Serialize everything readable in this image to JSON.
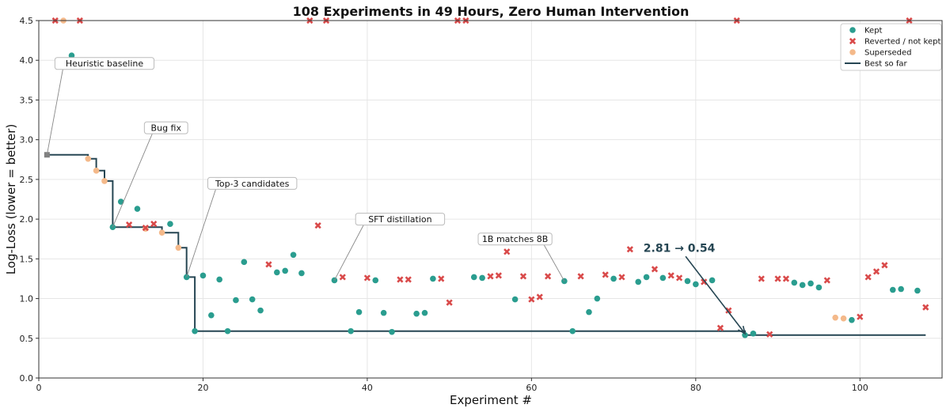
{
  "chart_data": {
    "type": "scatter",
    "title": "108 Experiments in 49 Hours, Zero Human Intervention",
    "xlabel": "Experiment #",
    "ylabel": "Log-Loss (lower = better)",
    "xlim": [
      0,
      110
    ],
    "ylim": [
      0.0,
      4.5
    ],
    "xticks": [
      "0",
      "20",
      "40",
      "60",
      "80",
      "100"
    ],
    "xtick_values": [
      0,
      20,
      40,
      60,
      80,
      100
    ],
    "yticks": [
      "0.0",
      "0.5",
      "1.0",
      "1.5",
      "2.0",
      "2.5",
      "3.0",
      "3.5",
      "4.0",
      "4.5"
    ],
    "ytick_values": [
      0.0,
      0.5,
      1.0,
      1.5,
      2.0,
      2.5,
      3.0,
      3.5,
      4.0,
      4.5
    ],
    "grid": true,
    "legend_position": "top-right",
    "colors": {
      "kept": "#2a9d8f",
      "reverted": "#d94a4a",
      "superseded": "#f4b98a",
      "best": "#264653",
      "baseline": "#808080",
      "grid": "#e6e6e6"
    },
    "legend": {
      "kept": "Kept",
      "reverted": "Reverted / not kept",
      "superseded": "Superseded",
      "best": "Best so far"
    },
    "baseline": {
      "x": 1,
      "y": 2.81
    },
    "kept": [
      {
        "x": 4,
        "y": 4.06
      },
      {
        "x": 9,
        "y": 1.9
      },
      {
        "x": 10,
        "y": 2.22
      },
      {
        "x": 12,
        "y": 2.13
      },
      {
        "x": 16,
        "y": 1.94
      },
      {
        "x": 18,
        "y": 1.27
      },
      {
        "x": 19,
        "y": 0.59
      },
      {
        "x": 20,
        "y": 1.29
      },
      {
        "x": 21,
        "y": 0.79
      },
      {
        "x": 22,
        "y": 1.24
      },
      {
        "x": 23,
        "y": 0.59
      },
      {
        "x": 24,
        "y": 0.98
      },
      {
        "x": 25,
        "y": 1.46
      },
      {
        "x": 26,
        "y": 0.99
      },
      {
        "x": 27,
        "y": 0.85
      },
      {
        "x": 29,
        "y": 1.33
      },
      {
        "x": 30,
        "y": 1.35
      },
      {
        "x": 31,
        "y": 1.55
      },
      {
        "x": 32,
        "y": 1.32
      },
      {
        "x": 36,
        "y": 1.23
      },
      {
        "x": 38,
        "y": 0.59
      },
      {
        "x": 39,
        "y": 0.83
      },
      {
        "x": 41,
        "y": 1.23
      },
      {
        "x": 42,
        "y": 0.82
      },
      {
        "x": 43,
        "y": 0.58
      },
      {
        "x": 46,
        "y": 0.81
      },
      {
        "x": 47,
        "y": 0.82
      },
      {
        "x": 48,
        "y": 1.25
      },
      {
        "x": 53,
        "y": 1.27
      },
      {
        "x": 54,
        "y": 1.26
      },
      {
        "x": 58,
        "y": 0.99
      },
      {
        "x": 64,
        "y": 1.22
      },
      {
        "x": 65,
        "y": 0.59
      },
      {
        "x": 67,
        "y": 0.83
      },
      {
        "x": 68,
        "y": 1.0
      },
      {
        "x": 70,
        "y": 1.25
      },
      {
        "x": 73,
        "y": 1.21
      },
      {
        "x": 74,
        "y": 1.27
      },
      {
        "x": 76,
        "y": 1.26
      },
      {
        "x": 79,
        "y": 1.22
      },
      {
        "x": 80,
        "y": 1.18
      },
      {
        "x": 82,
        "y": 1.23
      },
      {
        "x": 86,
        "y": 0.54
      },
      {
        "x": 87,
        "y": 0.56
      },
      {
        "x": 92,
        "y": 1.2
      },
      {
        "x": 93,
        "y": 1.17
      },
      {
        "x": 94,
        "y": 1.19
      },
      {
        "x": 95,
        "y": 1.14
      },
      {
        "x": 99,
        "y": 0.73
      },
      {
        "x": 104,
        "y": 1.11
      },
      {
        "x": 105,
        "y": 1.12
      },
      {
        "x": 107,
        "y": 1.1
      }
    ],
    "reverted": [
      {
        "x": 2,
        "y": 4.5
      },
      {
        "x": 5,
        "y": 4.5
      },
      {
        "x": 11,
        "y": 1.93
      },
      {
        "x": 13,
        "y": 1.89
      },
      {
        "x": 14,
        "y": 1.94
      },
      {
        "x": 28,
        "y": 1.43
      },
      {
        "x": 33,
        "y": 4.5
      },
      {
        "x": 34,
        "y": 1.92
      },
      {
        "x": 35,
        "y": 4.5
      },
      {
        "x": 37,
        "y": 1.27
      },
      {
        "x": 40,
        "y": 1.26
      },
      {
        "x": 44,
        "y": 1.24
      },
      {
        "x": 45,
        "y": 1.24
      },
      {
        "x": 49,
        "y": 1.25
      },
      {
        "x": 50,
        "y": 0.95
      },
      {
        "x": 51,
        "y": 4.5
      },
      {
        "x": 52,
        "y": 4.5
      },
      {
        "x": 55,
        "y": 1.28
      },
      {
        "x": 56,
        "y": 1.29
      },
      {
        "x": 57,
        "y": 1.59
      },
      {
        "x": 59,
        "y": 1.28
      },
      {
        "x": 60,
        "y": 0.99
      },
      {
        "x": 61,
        "y": 1.02
      },
      {
        "x": 62,
        "y": 1.28
      },
      {
        "x": 66,
        "y": 1.28
      },
      {
        "x": 69,
        "y": 1.3
      },
      {
        "x": 71,
        "y": 1.27
      },
      {
        "x": 72,
        "y": 1.62
      },
      {
        "x": 75,
        "y": 1.37
      },
      {
        "x": 77,
        "y": 1.29
      },
      {
        "x": 78,
        "y": 1.26
      },
      {
        "x": 81,
        "y": 1.21
      },
      {
        "x": 83,
        "y": 0.63
      },
      {
        "x": 84,
        "y": 0.85
      },
      {
        "x": 85,
        "y": 4.5
      },
      {
        "x": 88,
        "y": 1.25
      },
      {
        "x": 89,
        "y": 0.55
      },
      {
        "x": 90,
        "y": 1.25
      },
      {
        "x": 91,
        "y": 1.25
      },
      {
        "x": 96,
        "y": 1.23
      },
      {
        "x": 100,
        "y": 0.77
      },
      {
        "x": 101,
        "y": 1.27
      },
      {
        "x": 102,
        "y": 1.34
      },
      {
        "x": 103,
        "y": 1.42
      },
      {
        "x": 106,
        "y": 4.5
      },
      {
        "x": 108,
        "y": 0.89
      }
    ],
    "superseded": [
      {
        "x": 3,
        "y": 4.5
      },
      {
        "x": 6,
        "y": 2.76
      },
      {
        "x": 7,
        "y": 2.61
      },
      {
        "x": 8,
        "y": 2.48
      },
      {
        "x": 13,
        "y": 1.88
      },
      {
        "x": 15,
        "y": 1.83
      },
      {
        "x": 17,
        "y": 1.64
      },
      {
        "x": 97,
        "y": 0.76
      },
      {
        "x": 98,
        "y": 0.75
      }
    ],
    "best_so_far": [
      {
        "x": 1,
        "y": 2.81
      },
      {
        "x": 6,
        "y": 2.81
      },
      {
        "x": 6,
        "y": 2.76
      },
      {
        "x": 7,
        "y": 2.76
      },
      {
        "x": 7,
        "y": 2.61
      },
      {
        "x": 8,
        "y": 2.61
      },
      {
        "x": 8,
        "y": 2.48
      },
      {
        "x": 9,
        "y": 2.48
      },
      {
        "x": 9,
        "y": 1.9
      },
      {
        "x": 15,
        "y": 1.9
      },
      {
        "x": 15,
        "y": 1.83
      },
      {
        "x": 17,
        "y": 1.83
      },
      {
        "x": 17,
        "y": 1.64
      },
      {
        "x": 18,
        "y": 1.64
      },
      {
        "x": 18,
        "y": 1.27
      },
      {
        "x": 19,
        "y": 1.27
      },
      {
        "x": 19,
        "y": 0.59
      },
      {
        "x": 86,
        "y": 0.59
      },
      {
        "x": 86,
        "y": 0.54
      },
      {
        "x": 108,
        "y": 0.54
      }
    ],
    "annotations": [
      {
        "text": "Heuristic baseline",
        "point": {
          "x": 1,
          "y": 2.81
        },
        "label_at": {
          "x": 8,
          "y": 3.96
        }
      },
      {
        "text": "Bug fix",
        "point": {
          "x": 9,
          "y": 1.9
        },
        "label_at": {
          "x": 15.5,
          "y": 3.15
        }
      },
      {
        "text": "Top-3 candidates",
        "point": {
          "x": 18,
          "y": 1.27
        },
        "label_at": {
          "x": 26,
          "y": 2.45
        }
      },
      {
        "text": "SFT distillation",
        "point": {
          "x": 36,
          "y": 1.23
        },
        "label_at": {
          "x": 44,
          "y": 2.0
        }
      },
      {
        "text": "1B matches 8B",
        "point": {
          "x": 64,
          "y": 1.22
        },
        "label_at": {
          "x": 58,
          "y": 1.75
        }
      }
    ],
    "callout": {
      "text": "2.81 → 0.54",
      "point": {
        "x": 86,
        "y": 0.54
      },
      "label_at": {
        "x": 78,
        "y": 1.64
      }
    }
  }
}
